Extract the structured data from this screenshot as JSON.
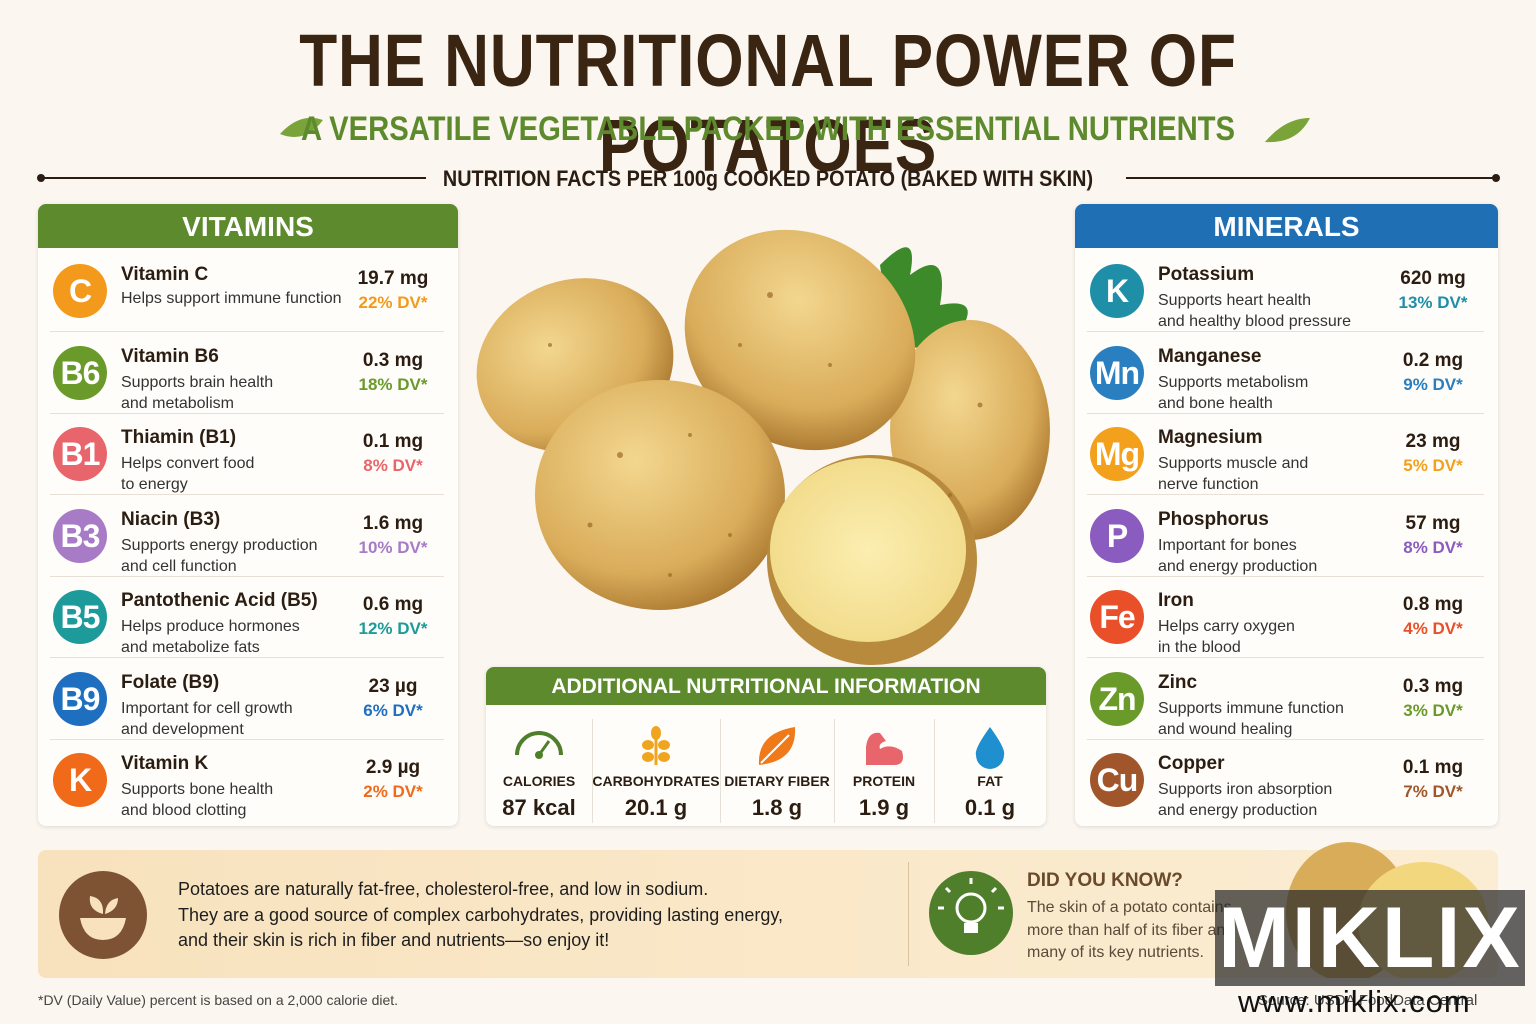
{
  "header": {
    "title": "THE NUTRITIONAL POWER OF POTATOES",
    "subtitle": "A VERSATILE VEGETABLE PACKED WITH ESSENTIAL NUTRIENTS",
    "section_label": "NUTRITION FACTS PER 100g COOKED POTATO (BAKED WITH SKIN)"
  },
  "vitamins": {
    "title": "VITAMINS",
    "items": [
      {
        "symbol": "C",
        "name": "Vitamin C",
        "description": [
          "Helps support immune function"
        ],
        "amount": "19.7 mg",
        "dv": "22% DV*",
        "color": "#f39a1c"
      },
      {
        "symbol": "B6",
        "name": "Vitamin B6",
        "description": [
          "Supports brain health",
          "and metabolism"
        ],
        "amount": "0.3 mg",
        "dv": "18% DV*",
        "color": "#6a9a2a"
      },
      {
        "symbol": "B1",
        "name": "Thiamin (B1)",
        "description": [
          "Helps convert food",
          "to energy"
        ],
        "amount": "0.1 mg",
        "dv": "8% DV*",
        "color": "#e8656b"
      },
      {
        "symbol": "B3",
        "name": "Niacin (B3)",
        "description": [
          "Supports energy production",
          "and cell function"
        ],
        "amount": "1.6 mg",
        "dv": "10% DV*",
        "color": "#a77bc6"
      },
      {
        "symbol": "B5",
        "name": "Pantothenic Acid (B5)",
        "description": [
          "Helps produce hormones",
          "and metabolize fats"
        ],
        "amount": "0.6 mg",
        "dv": "12% DV*",
        "color": "#1d9a9a"
      },
      {
        "symbol": "B9",
        "name": "Folate (B9)",
        "description": [
          "Important for cell growth",
          "and development"
        ],
        "amount": "23 µg",
        "dv": "6% DV*",
        "color": "#1f6fc0"
      },
      {
        "symbol": "K",
        "name": "Vitamin K",
        "description": [
          "Supports bone health",
          "and blood clotting"
        ],
        "amount": "2.9 µg",
        "dv": "2% DV*",
        "color": "#f06a1a"
      }
    ]
  },
  "minerals": {
    "title": "MINERALS",
    "items": [
      {
        "symbol": "K",
        "name": "Potassium",
        "description": [
          "Supports heart health",
          "and healthy blood pressure"
        ],
        "amount": "620 mg",
        "dv": "13% DV*",
        "color": "#1f8fa8"
      },
      {
        "symbol": "Mn",
        "name": "Manganese",
        "description": [
          "Supports metabolism",
          "and bone health"
        ],
        "amount": "0.2 mg",
        "dv": "9% DV*",
        "color": "#2a7fc0"
      },
      {
        "symbol": "Mg",
        "name": "Magnesium",
        "description": [
          "Supports muscle and",
          "nerve function"
        ],
        "amount": "23 mg",
        "dv": "5% DV*",
        "color": "#f3a11c"
      },
      {
        "symbol": "P",
        "name": "Phosphorus",
        "description": [
          "Important for bones",
          "and energy production"
        ],
        "amount": "57 mg",
        "dv": "8% DV*",
        "color": "#8a5cc0"
      },
      {
        "symbol": "Fe",
        "name": "Iron",
        "description": [
          "Helps carry oxygen",
          "in the blood"
        ],
        "amount": "0.8 mg",
        "dv": "4% DV*",
        "color": "#e9502a"
      },
      {
        "symbol": "Zn",
        "name": "Zinc",
        "description": [
          "Supports immune function",
          "and wound healing"
        ],
        "amount": "0.3 mg",
        "dv": "3% DV*",
        "color": "#6a9a2a"
      },
      {
        "symbol": "Cu",
        "name": "Copper",
        "description": [
          "Supports iron absorption",
          "and energy production"
        ],
        "amount": "0.1 mg",
        "dv": "7% DV*",
        "color": "#a0562a"
      }
    ]
  },
  "additional": {
    "title": "ADDITIONAL NUTRITIONAL INFORMATION",
    "items": [
      {
        "label": "CALORIES",
        "value": "87 kcal"
      },
      {
        "label": "CARBOHYDRATES",
        "value": "20.1 g"
      },
      {
        "label": "DIETARY FIBER",
        "value": "1.8 g"
      },
      {
        "label": "PROTEIN",
        "value": "1.9 g"
      },
      {
        "label": "FAT",
        "value": "0.1 g"
      }
    ]
  },
  "footer": {
    "text": [
      "Potatoes are naturally fat-free, cholesterol-free, and low in sodium.",
      "They are a good source of complex carbohydrates, providing lasting energy,",
      "and their skin is rich in fiber and nutrients—so enjoy it!"
    ],
    "did_you_know": {
      "title": "DID YOU KNOW?",
      "text": [
        "The skin of a potato contains",
        "more than half of its fiber and",
        "many of its key nutrients."
      ]
    },
    "footnote": "*DV (Daily Value) percent is based on a 2,000 calorie diet.",
    "source": "Source: USDA FoodData Central",
    "watermark": "MIKLIX",
    "watermark_url": "www.miklix.com"
  }
}
